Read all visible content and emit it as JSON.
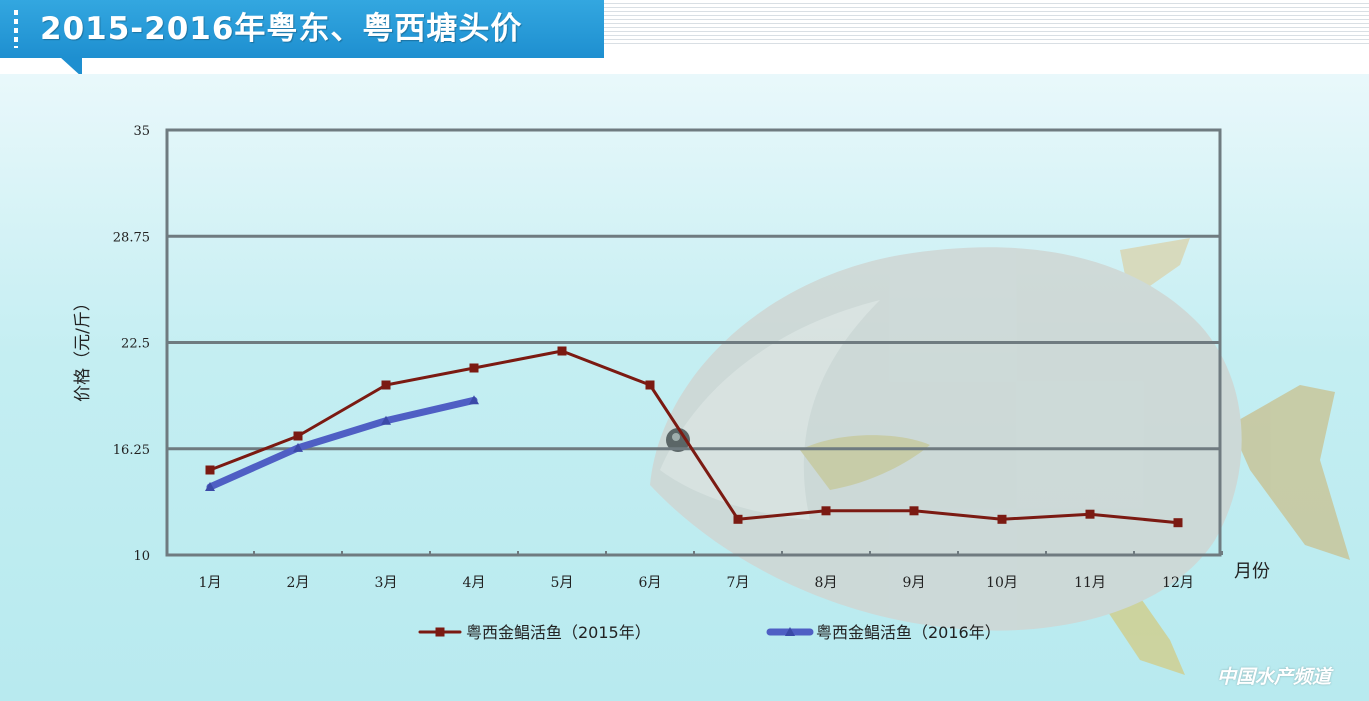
{
  "header": {
    "title": "2015-2016年粤东、粤西塘头价"
  },
  "watermark": "中国水产频道",
  "chart_data": {
    "type": "line",
    "title": "",
    "xlabel": "月份",
    "ylabel": "价格（元/斤）",
    "categories": [
      "1月",
      "2月",
      "3月",
      "4月",
      "5月",
      "6月",
      "7月",
      "8月",
      "9月",
      "10月",
      "11月",
      "12月"
    ],
    "yticks": [
      "10",
      "16.25",
      "22.5",
      "28.75",
      "35"
    ],
    "ylim": [
      10,
      35
    ],
    "grid": true,
    "legend_position": "bottom",
    "series": [
      {
        "name": "粤西金鲳活鱼（2015年）",
        "color": "#7b1a12",
        "marker": "square",
        "values": [
          15,
          17,
          20,
          21,
          22,
          20,
          12.1,
          12.6,
          12.6,
          12.1,
          12.4,
          11.9
        ]
      },
      {
        "name": "粤西金鲳活鱼（2016年）",
        "color": "#4f5fc4",
        "marker": "triangle",
        "values": [
          14,
          16.3,
          17.9,
          19.1,
          null,
          null,
          null,
          null,
          null,
          null,
          null,
          null
        ]
      }
    ]
  }
}
